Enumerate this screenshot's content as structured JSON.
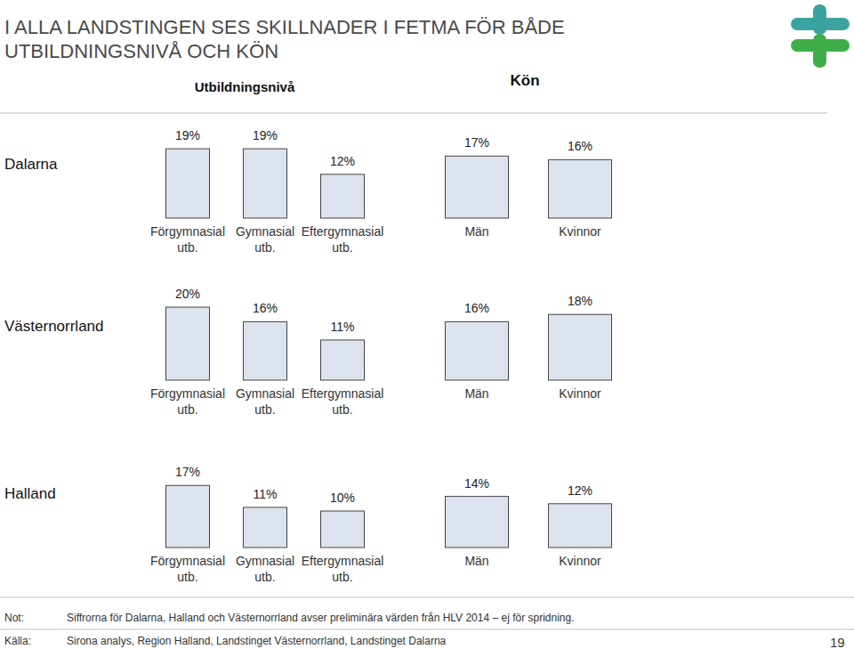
{
  "title": [
    "I ALLA LANDSTINGEN SES SKILLNADER I FETMA FÖR BÅDE",
    "UTBILDNINGSNIVÅ OCH KÖN"
  ],
  "headers": [
    "Utbildningsnivå",
    "Kön"
  ],
  "note": {
    "label": "Not:",
    "text": "Siffrorna för Dalarna, Halland och Västernorrland avser preliminära värden från HLV 2014 – ej för spridning."
  },
  "source": {
    "label": "Källa:",
    "text": "Sirona analys, Region Halland, Landstinget Västernorrland, Landstinget Dalarna"
  },
  "page": 19,
  "chart_data": [
    {
      "type": "bar",
      "title": "Dalarna",
      "categories": [
        "Förgymnasial utb.",
        "Gymnasial utb.",
        "Eftergymnasial utb.",
        "Män",
        "Kvinnor"
      ],
      "values": [
        19,
        19,
        12,
        17,
        16
      ],
      "value_labels": [
        "19%",
        "19%",
        "12%",
        "17%",
        "16%"
      ],
      "data_labels": true,
      "color": "#dde3ee",
      "tick_labels": "x"
    },
    {
      "type": "bar",
      "title": "Västernorrland",
      "categories": [
        "Förgymnasial utb.",
        "Gymnasial utb.",
        "Eftergymnasial utb.",
        "Män",
        "Kvinnor"
      ],
      "values": [
        20,
        16,
        11,
        16,
        18
      ],
      "value_labels": [
        "20%",
        "16%",
        "11%",
        "16%",
        "18%"
      ],
      "data_labels": true,
      "color": "#dde3ee",
      "tick_labels": "x"
    },
    {
      "type": "bar",
      "title": "Halland",
      "categories": [
        "Förgymnasial utb.",
        "Gymnasial utb.",
        "Eftergymnasial utb.",
        "Män",
        "Kvinnor"
      ],
      "values": [
        17,
        11,
        10,
        14,
        12
      ],
      "value_labels": [
        "17%",
        "11%",
        "10%",
        "14%",
        "12%"
      ],
      "data_labels": true,
      "color": "#dde3ee",
      "tick_labels": "x"
    }
  ]
}
